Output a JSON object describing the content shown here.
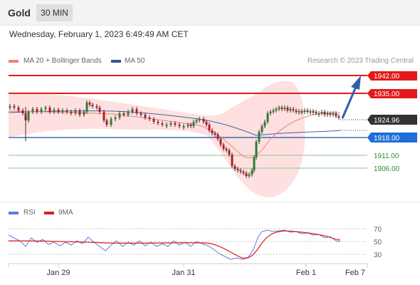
{
  "header": {
    "symbol": "Gold",
    "timeframe": "30 MIN"
  },
  "timestamp": "Wednesday, February 1, 2023 6:49:49 AM CET",
  "legend": {
    "ma20": "MA 20 + Bollinger Bands",
    "ma50": "MA 50",
    "credit": "Research © 2023 Trading Central"
  },
  "levels": {
    "r2": "1942.00",
    "r1": "1935.00",
    "current": "1924.96",
    "pivot": "1918.00",
    "s1": "1911.00",
    "s2": "1906.00"
  },
  "rsi_legend": {
    "rsi": "RSI",
    "ma9": "9MA"
  },
  "rsi_scale": [
    "70",
    "50",
    "30"
  ],
  "x_axis": [
    "Jan 29",
    "Jan 31",
    "Feb 1",
    "Feb 7"
  ],
  "colors": {
    "resistance": "#e31a1c",
    "pivot": "#3a6fb5",
    "support": "#8cc58a",
    "support_text": "#2e8b2e",
    "candle_up": "#2e7d32",
    "candle_down": "#b71c1c",
    "bollinger": "#fdd6d6",
    "ma20": "#f08080",
    "ma50": "#4a5fa8",
    "arrow": "#2e5fa8",
    "rsi": "#5b7fd8",
    "rsi_ma": "#e31a1c"
  }
}
